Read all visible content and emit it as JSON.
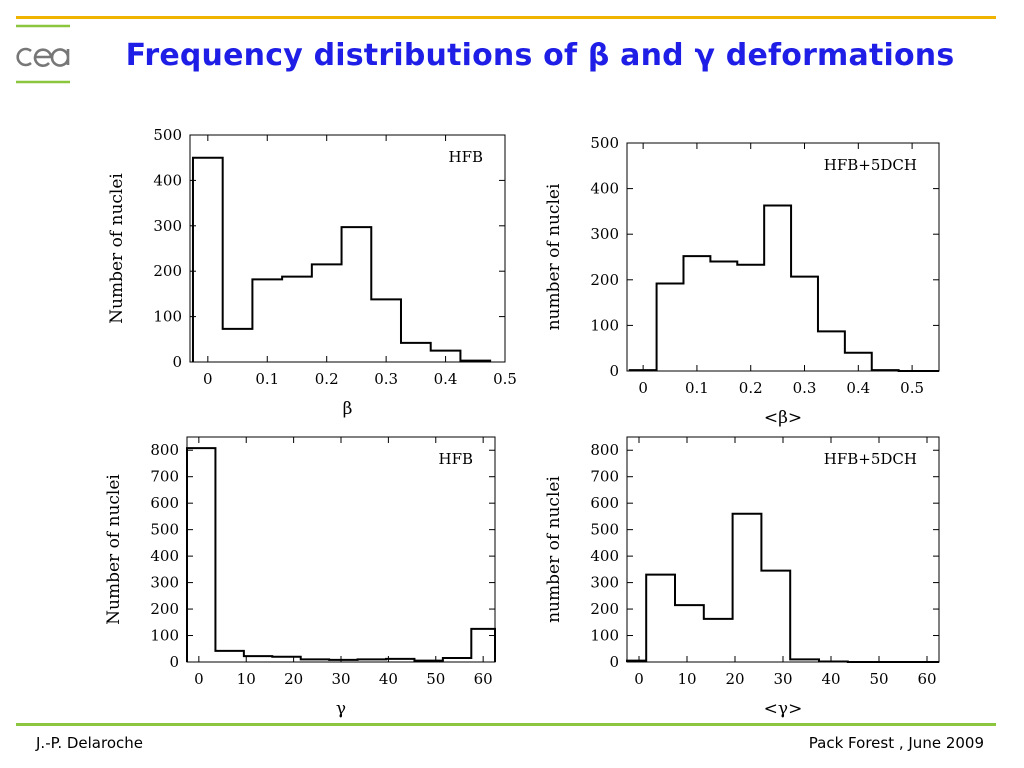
{
  "slide": {
    "title": "Frequency distributions of β and γ deformations",
    "footer_left": "J.-P. Delaroche",
    "footer_right": "Pack Forest , June 2009",
    "logo_text": "cea"
  },
  "colors": {
    "title": "#1e1ee6",
    "rule": "#f0b400",
    "logo_line": "#8cc63f",
    "logo_text": "#777777",
    "bottom_rule": "#8cc63f"
  },
  "chart_data": [
    {
      "type": "bar",
      "label": "HFB",
      "xlabel": "β",
      "ylabel": "Number of nuclei",
      "xlim": [
        -0.03,
        0.5
      ],
      "ylim": [
        0,
        500
      ],
      "xticks": [
        0,
        0.1,
        0.2,
        0.3,
        0.4,
        0.5
      ],
      "xtick_labels": [
        "0",
        "0.1",
        "0.2",
        "0.3",
        "0.4",
        "0.5"
      ],
      "yticks": [
        0,
        100,
        200,
        300,
        400,
        500
      ],
      "ytick_labels": [
        "0",
        "100",
        "200",
        "300",
        "400",
        "500"
      ],
      "bin_edges": [
        -0.025,
        0.025,
        0.075,
        0.125,
        0.175,
        0.225,
        0.275,
        0.325,
        0.375,
        0.425,
        0.475
      ],
      "values": [
        450,
        73,
        182,
        188,
        215,
        297,
        138,
        42,
        25,
        3
      ]
    },
    {
      "type": "bar",
      "label": "HFB+5DCH",
      "xlabel": "<β>",
      "ylabel": "number of nuclei",
      "xlim": [
        -0.03,
        0.55
      ],
      "ylim": [
        0,
        500
      ],
      "xticks": [
        0,
        0.1,
        0.2,
        0.3,
        0.4,
        0.5
      ],
      "xtick_labels": [
        "0",
        "0.1",
        "0.2",
        "0.3",
        "0.4",
        "0.5"
      ],
      "yticks": [
        0,
        100,
        200,
        300,
        400,
        500
      ],
      "ytick_labels": [
        "0",
        "100",
        "200",
        "300",
        "400",
        "500"
      ],
      "bin_edges": [
        -0.025,
        0.025,
        0.075,
        0.125,
        0.175,
        0.225,
        0.275,
        0.325,
        0.375,
        0.425,
        0.475,
        0.525,
        0.55
      ],
      "values": [
        2,
        192,
        252,
        240,
        233,
        363,
        207,
        87,
        40,
        2,
        0,
        0
      ]
    },
    {
      "type": "bar",
      "label": "HFB",
      "xlabel": "γ",
      "ylabel": "Number of nuclei",
      "xlim": [
        -2.5,
        62.5
      ],
      "ylim": [
        0,
        850
      ],
      "xticks": [
        0,
        10,
        20,
        30,
        40,
        50,
        60
      ],
      "xtick_labels": [
        "0",
        "10",
        "20",
        "30",
        "40",
        "50",
        "60"
      ],
      "yticks": [
        0,
        100,
        200,
        300,
        400,
        500,
        600,
        700,
        800
      ],
      "ytick_labels": [
        "0",
        "100",
        "200",
        "300",
        "400",
        "500",
        "600",
        "700",
        "800"
      ],
      "bin_edges": [
        -2.5,
        3.5,
        9.5,
        15.5,
        21.5,
        27.5,
        33.5,
        39.5,
        45.5,
        51.5,
        57.5,
        62.5
      ],
      "values": [
        808,
        42,
        22,
        20,
        10,
        8,
        10,
        12,
        5,
        15,
        125
      ]
    },
    {
      "type": "bar",
      "label": "HFB+5DCH",
      "xlabel": "<γ>",
      "ylabel": "number of nuclei",
      "xlim": [
        -2.5,
        62.5
      ],
      "ylim": [
        0,
        850
      ],
      "xticks": [
        0,
        10,
        20,
        30,
        40,
        50,
        60
      ],
      "xtick_labels": [
        "0",
        "10",
        "20",
        "30",
        "40",
        "50",
        "60"
      ],
      "yticks": [
        0,
        100,
        200,
        300,
        400,
        500,
        600,
        700,
        800
      ],
      "ytick_labels": [
        "0",
        "100",
        "200",
        "300",
        "400",
        "500",
        "600",
        "700",
        "800"
      ],
      "bin_edges": [
        -2.5,
        1.5,
        7.5,
        13.5,
        19.5,
        25.5,
        31.5,
        37.5,
        43.5,
        62.5
      ],
      "values": [
        5,
        330,
        215,
        163,
        560,
        345,
        10,
        2,
        0
      ]
    }
  ]
}
